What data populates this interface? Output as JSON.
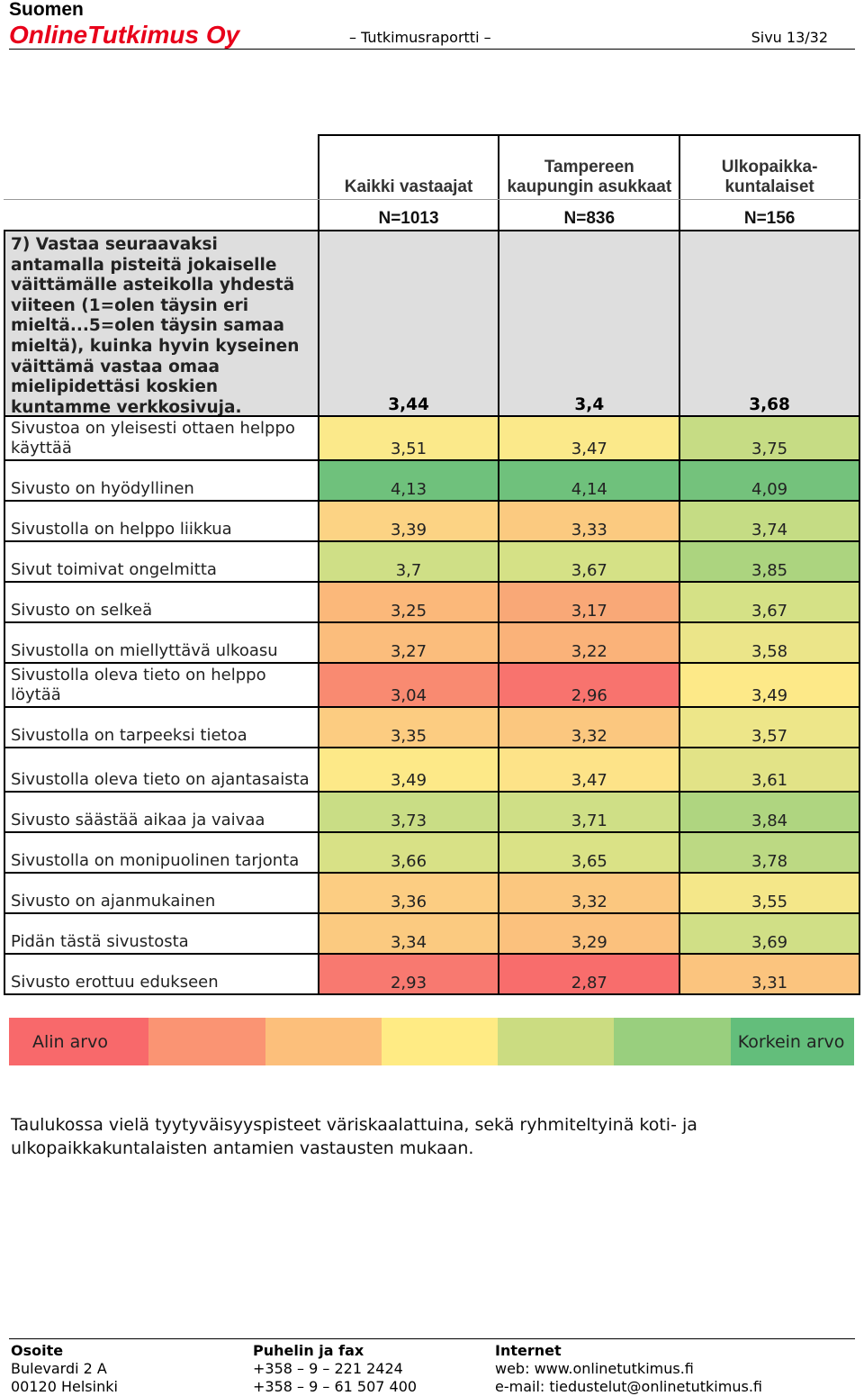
{
  "header": {
    "brand_line1": "Suomen",
    "brand_line2": "OnlineTutkimus Oy",
    "doc_title": "– Tutkimusraportti –",
    "page": "Sivu 13/32"
  },
  "table": {
    "columns": [
      "Kaikki vastaajat",
      "Tampereen kaupungin asukkaat",
      "Ulkopaikka-kuntalaiset"
    ],
    "n_values": [
      "N=1013",
      "N=836",
      "N=156"
    ],
    "question": {
      "text": "7) Vastaa seuraavaksi antamalla pisteitä jokaiselle väittämälle asteikolla yhdestä viiteen (1=olen täysin eri mieltä...5=olen täysin samaa mieltä), kuinka hyvin kyseinen väittämä vastaa omaa mielipidettäsi koskien kuntamme verkkosivuja.",
      "values": [
        "3,44",
        "3,4",
        "3,68"
      ]
    },
    "rows": [
      {
        "label": "Sivustoa on yleisesti ottaen helppo käyttää",
        "values": [
          "3,51",
          "3,47",
          "3,75"
        ],
        "colors": [
          "#fbe98a",
          "#fbe98a",
          "#c6dc84"
        ]
      },
      {
        "label": "Sivusto on hyödyllinen",
        "values": [
          "4,13",
          "4,14",
          "4,09"
        ],
        "colors": [
          "#6fc17c",
          "#6fc17c",
          "#74c27c"
        ]
      },
      {
        "label": "Sivustolla on helppo liikkua",
        "values": [
          "3,39",
          "3,33",
          "3,74"
        ],
        "colors": [
          "#fcd384",
          "#fbca80",
          "#c5dc84"
        ]
      },
      {
        "label": "Sivut toimivat ongelmitta",
        "values": [
          "3,7",
          "3,67",
          "3,85"
        ],
        "colors": [
          "#cfdf86",
          "#d5e186",
          "#acd47f"
        ]
      },
      {
        "label": "Sivusto on selkeä",
        "values": [
          "3,25",
          "3,17",
          "3,67"
        ],
        "colors": [
          "#fbb87a",
          "#f9a877",
          "#d5e186"
        ]
      },
      {
        "label": "Sivustolla on miellyttävä ulkoasu",
        "values": [
          "3,27",
          "3,22",
          "3,58"
        ],
        "colors": [
          "#fbbd7c",
          "#fab279",
          "#ebe589"
        ]
      },
      {
        "label": "Sivustolla oleva tieto on helppo löytää",
        "values": [
          "3,04",
          "2,96",
          "3,49"
        ],
        "colors": [
          "#f98a71",
          "#f8736e",
          "#fde988"
        ]
      },
      {
        "label": "Sivustolla on tarpeeksi tietoa",
        "values": [
          "3,35",
          "3,32",
          "3,57"
        ],
        "colors": [
          "#fccc81",
          "#fbc77f",
          "#ede689"
        ]
      },
      {
        "label": "Sivustolla oleva tieto on ajantasaista",
        "values": [
          "3,49",
          "3,47",
          "3,61"
        ],
        "colors": [
          "#fde988",
          "#fde388",
          "#e2e387"
        ]
      },
      {
        "label": "Sivusto säästää aikaa ja vaivaa",
        "values": [
          "3,73",
          "3,71",
          "3,84"
        ],
        "colors": [
          "#c9dd85",
          "#cfdf86",
          "#afd580"
        ]
      },
      {
        "label": "Sivustolla on monipuolinen tarjonta",
        "values": [
          "3,66",
          "3,65",
          "3,78"
        ],
        "colors": [
          "#d8e186",
          "#dae286",
          "#bcd983"
        ]
      },
      {
        "label": "Sivusto on ajanmukainen",
        "values": [
          "3,36",
          "3,32",
          "3,55"
        ],
        "colors": [
          "#fccd82",
          "#fbc77f",
          "#f4e789"
        ]
      },
      {
        "label": "Pidän tästä sivustosta",
        "values": [
          "3,34",
          "3,29",
          "3,69"
        ],
        "colors": [
          "#fbca80",
          "#fbc17d",
          "#d0df86"
        ]
      },
      {
        "label": "Sivusto erottuu edukseen",
        "values": [
          "2,93",
          "2,87",
          "3,31"
        ],
        "colors": [
          "#f87970",
          "#f86d6c",
          "#fbc47e"
        ]
      }
    ]
  },
  "legend": {
    "low_label": "Alin arvo",
    "high_label": "Korkein arvo",
    "colors": [
      "#f8696b",
      "#fa9473",
      "#fcbf7b",
      "#ffeb84",
      "#cbdc81",
      "#99cf7e",
      "#63be7b"
    ]
  },
  "caption": "Taulukossa vielä tyytyväisyyspisteet väriskaalattuina, sekä ryhmiteltyinä koti- ja ulkopaikkakuntalaisten antamien vastausten mukaan.",
  "footer": {
    "col1": {
      "heading": "Osoite",
      "line1": "Bulevardi 2 A",
      "line2": "00120 Helsinki"
    },
    "col2": {
      "heading": "Puhelin ja fax",
      "line1": "+358 – 9 – 221 2424",
      "line2": "+358 – 9 – 61 507 400"
    },
    "col3": {
      "heading": "Internet",
      "line1": "web: www.onlinetutkimus.fi",
      "line2": "e-mail: tiedustelut@onlinetutkimus.fi"
    }
  }
}
